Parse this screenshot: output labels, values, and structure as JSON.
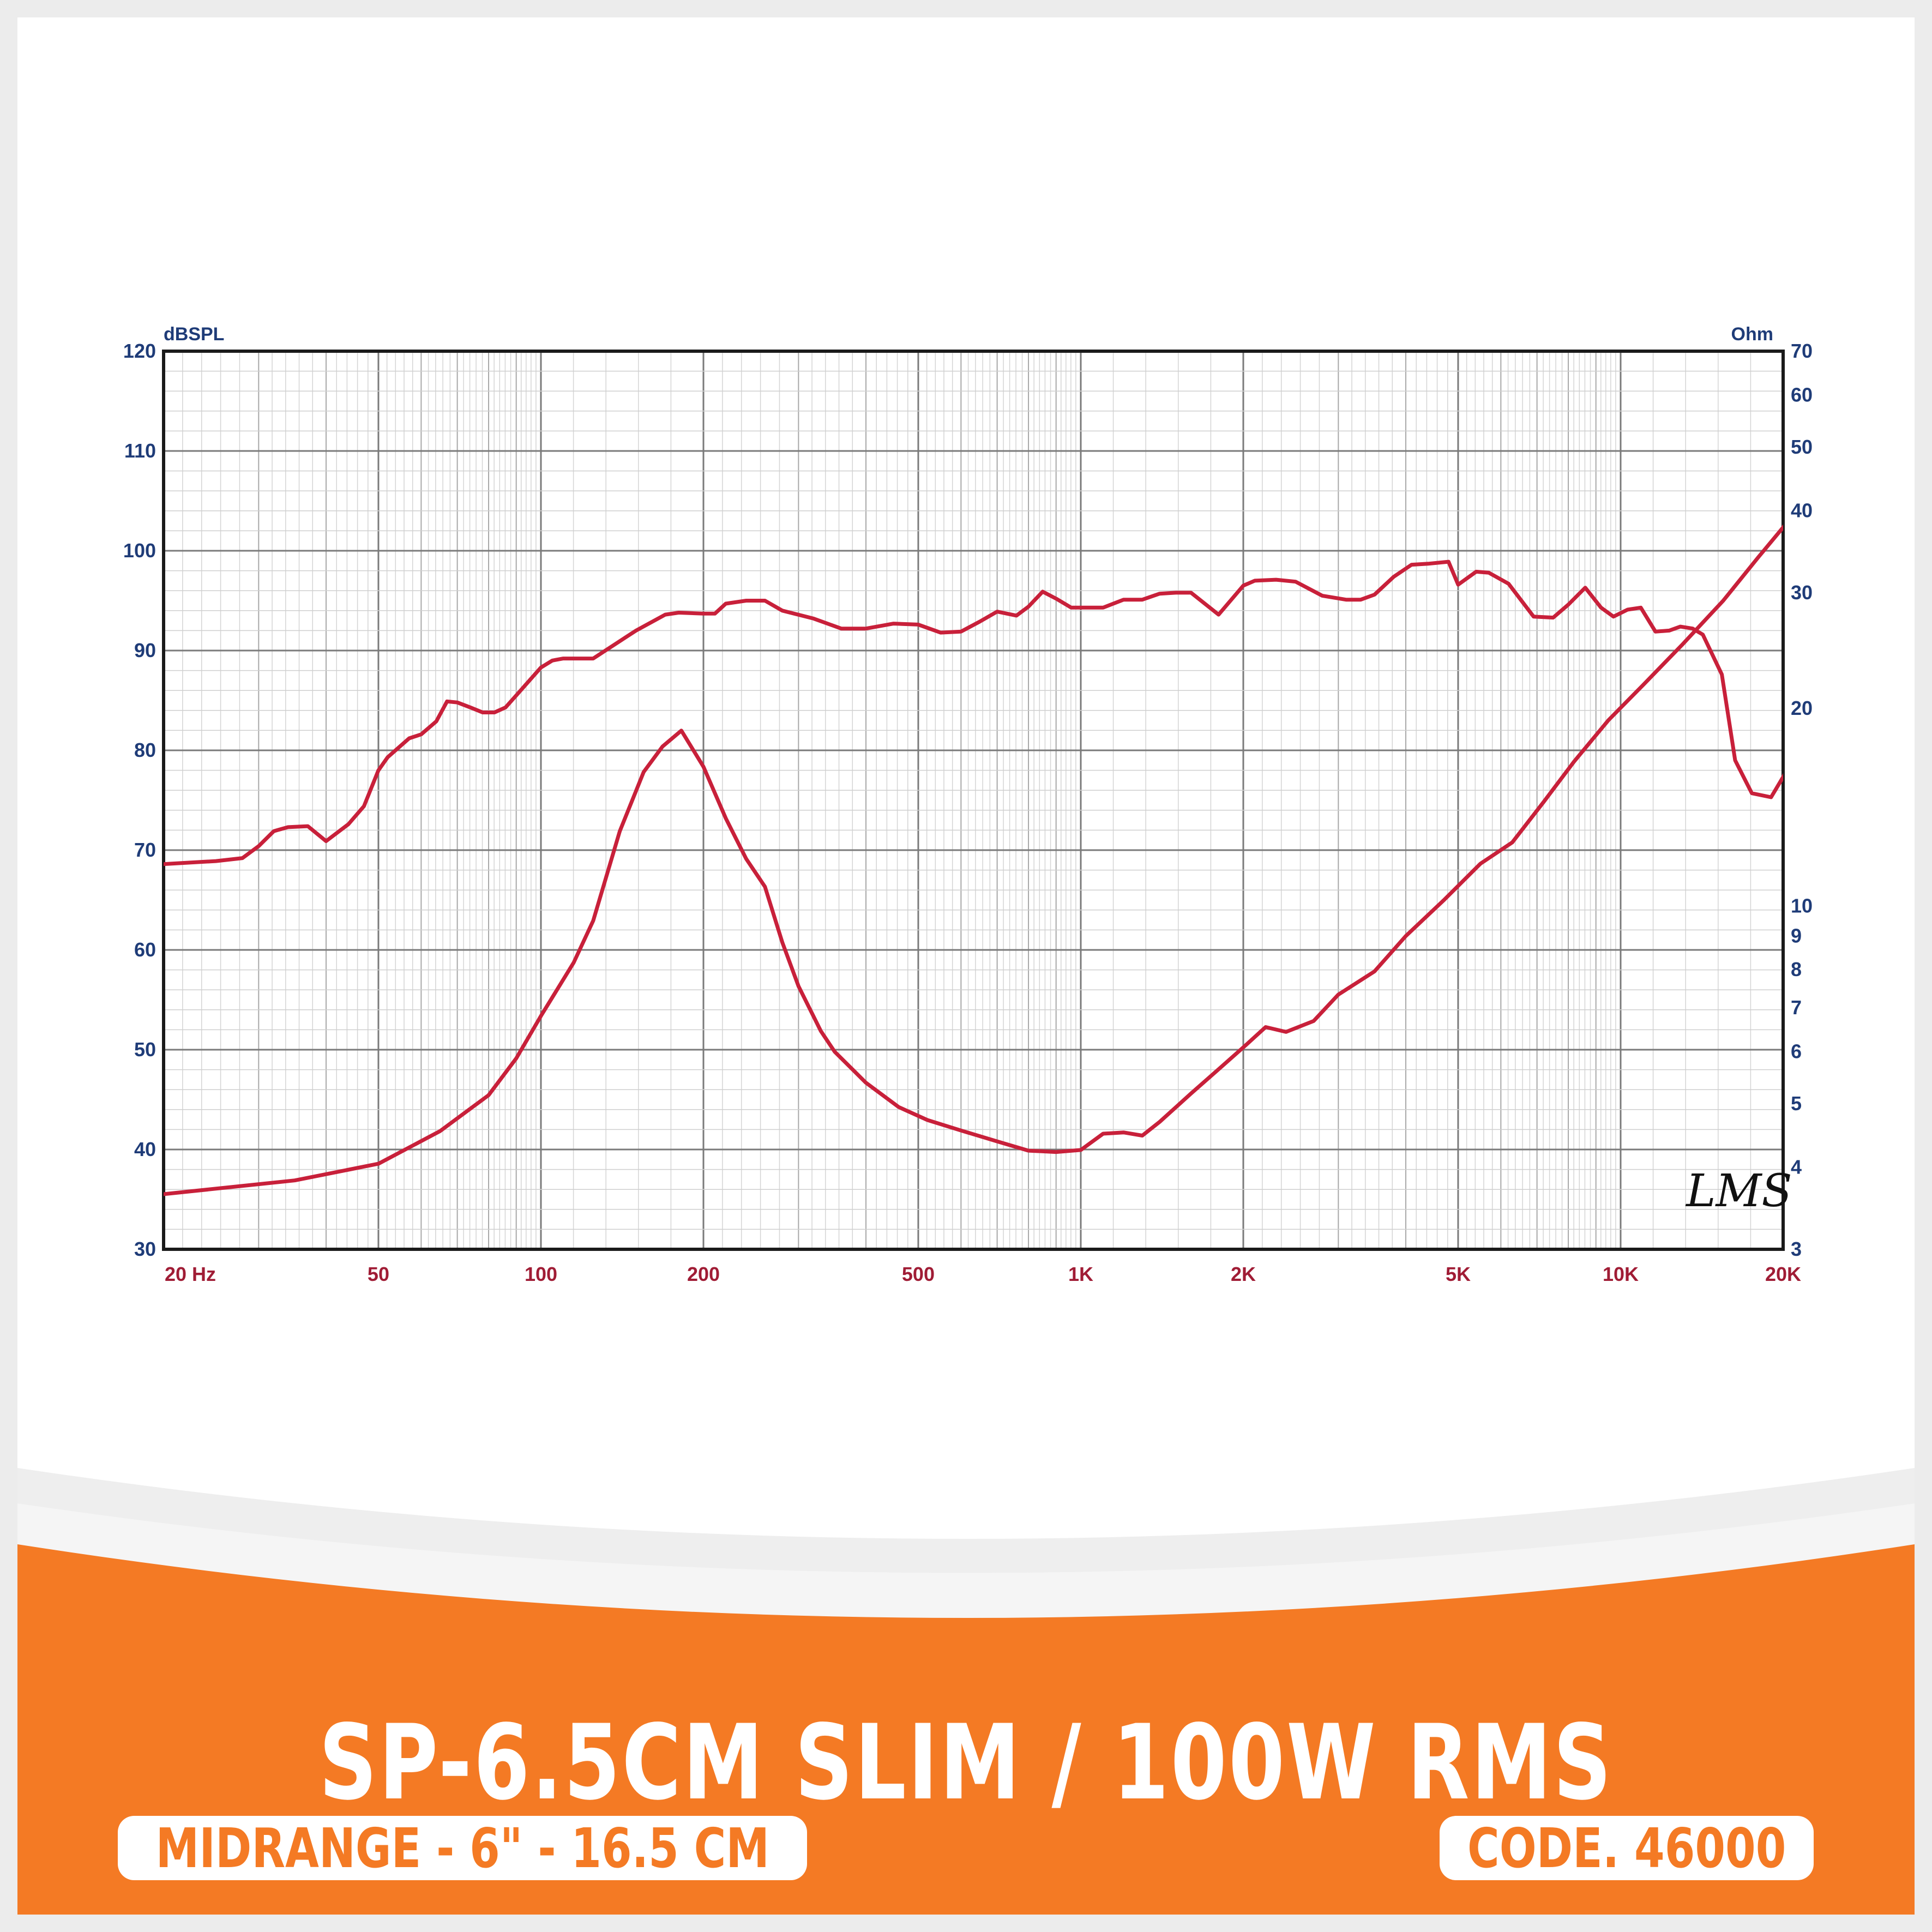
{
  "product": {
    "title": "SP-6.5CM SLIM / 100W RMS",
    "type_label": "MIDRANGE - 6\" - 16.5 CM",
    "code_label": "CODE. 46000"
  },
  "colors": {
    "accent": "#f47a24",
    "curve": "#c8203a",
    "axis_label": "#1f3c78",
    "freq_label": "#a01c35"
  },
  "logo_text": "LMS",
  "chart_data": {
    "type": "line",
    "x_scale": "log",
    "xlim": [
      20,
      20000
    ],
    "x_ticks": [
      {
        "v": 20,
        "label": "20  Hz"
      },
      {
        "v": 50,
        "label": "50"
      },
      {
        "v": 100,
        "label": "100"
      },
      {
        "v": 200,
        "label": "200"
      },
      {
        "v": 500,
        "label": "500"
      },
      {
        "v": 1000,
        "label": "1K"
      },
      {
        "v": 2000,
        "label": "2K"
      },
      {
        "v": 5000,
        "label": "5K"
      },
      {
        "v": 10000,
        "label": "10K"
      },
      {
        "v": 20000,
        "label": "20K"
      }
    ],
    "left_axis": {
      "unit": "dBSPL",
      "ylim": [
        30,
        120
      ],
      "ticks": [
        "30",
        "40",
        "50",
        "60",
        "70",
        "80",
        "90",
        "100",
        "110",
        "120"
      ]
    },
    "right_axis": {
      "unit": "Ohm",
      "scale": "log",
      "ylim": [
        3,
        70
      ],
      "ticks": [
        "3",
        "4",
        "5",
        "6",
        "7",
        "8",
        "9",
        "10",
        "20",
        "30",
        "40",
        "50",
        "60",
        "70"
      ]
    },
    "grid": true,
    "series": [
      {
        "axis": "left",
        "points": [
          [
            20,
            68.6
          ],
          [
            25,
            68.9
          ],
          [
            28,
            69.2
          ],
          [
            30,
            70.4
          ],
          [
            32,
            71.9
          ],
          [
            34,
            72.3
          ],
          [
            37,
            72.4
          ],
          [
            40,
            70.9
          ],
          [
            44,
            72.6
          ],
          [
            47,
            74.4
          ],
          [
            50,
            78.0
          ],
          [
            52,
            79.3
          ],
          [
            57,
            81.2
          ],
          [
            60,
            81.6
          ],
          [
            64,
            82.9
          ],
          [
            67,
            84.9
          ],
          [
            70,
            84.8
          ],
          [
            74,
            84.3
          ],
          [
            78,
            83.8
          ],
          [
            82,
            83.8
          ],
          [
            86,
            84.3
          ],
          [
            90,
            85.5
          ],
          [
            100,
            88.3
          ],
          [
            105,
            89.0
          ],
          [
            110,
            89.2
          ],
          [
            125,
            89.2
          ],
          [
            150,
            92.0
          ],
          [
            170,
            93.6
          ],
          [
            180,
            93.8
          ],
          [
            200,
            93.7
          ],
          [
            210,
            93.7
          ],
          [
            220,
            94.7
          ],
          [
            240,
            95.0
          ],
          [
            260,
            95.0
          ],
          [
            280,
            94.0
          ],
          [
            320,
            93.2
          ],
          [
            360,
            92.2
          ],
          [
            400,
            92.2
          ],
          [
            450,
            92.7
          ],
          [
            500,
            92.6
          ],
          [
            550,
            91.8
          ],
          [
            600,
            91.9
          ],
          [
            650,
            92.9
          ],
          [
            700,
            93.9
          ],
          [
            760,
            93.5
          ],
          [
            800,
            94.4
          ],
          [
            850,
            95.9
          ],
          [
            900,
            95.2
          ],
          [
            960,
            94.3
          ],
          [
            1000,
            94.3
          ],
          [
            1100,
            94.3
          ],
          [
            1200,
            95.1
          ],
          [
            1300,
            95.1
          ],
          [
            1400,
            95.7
          ],
          [
            1500,
            95.8
          ],
          [
            1600,
            95.8
          ],
          [
            1800,
            93.6
          ],
          [
            2000,
            96.5
          ],
          [
            2100,
            97.0
          ],
          [
            2300,
            97.1
          ],
          [
            2500,
            96.9
          ],
          [
            2800,
            95.5
          ],
          [
            3100,
            95.1
          ],
          [
            3300,
            95.1
          ],
          [
            3500,
            95.6
          ],
          [
            3800,
            97.4
          ],
          [
            4100,
            98.6
          ],
          [
            4400,
            98.7
          ],
          [
            4800,
            98.9
          ],
          [
            5000,
            96.6
          ],
          [
            5400,
            97.9
          ],
          [
            5700,
            97.8
          ],
          [
            6200,
            96.7
          ],
          [
            6900,
            93.4
          ],
          [
            7500,
            93.3
          ],
          [
            8000,
            94.6
          ],
          [
            8600,
            96.3
          ],
          [
            9200,
            94.3
          ],
          [
            9700,
            93.4
          ],
          [
            10300,
            94.1
          ],
          [
            10900,
            94.3
          ],
          [
            11600,
            91.9
          ],
          [
            12300,
            92.0
          ],
          [
            12900,
            92.4
          ],
          [
            13600,
            92.2
          ],
          [
            14200,
            91.6
          ],
          [
            15400,
            87.6
          ],
          [
            16300,
            79.0
          ],
          [
            17500,
            75.7
          ],
          [
            19000,
            75.3
          ],
          [
            20500,
            78.3
          ],
          [
            21800,
            77.0
          ],
          [
            23200,
            69.7
          ],
          [
            25000,
            70.4
          ]
        ]
      },
      {
        "axis": "right",
        "points": [
          [
            20,
            3.64
          ],
          [
            35,
            3.82
          ],
          [
            50,
            4.05
          ],
          [
            65,
            4.54
          ],
          [
            80,
            5.15
          ],
          [
            90,
            5.86
          ],
          [
            100,
            6.8
          ],
          [
            115,
            8.2
          ],
          [
            125,
            9.5
          ],
          [
            140,
            13.0
          ],
          [
            155,
            16.0
          ],
          [
            168,
            17.5
          ],
          [
            182,
            18.5
          ],
          [
            200,
            16.3
          ],
          [
            220,
            13.6
          ],
          [
            240,
            11.8
          ],
          [
            260,
            10.7
          ],
          [
            280,
            8.8
          ],
          [
            300,
            7.55
          ],
          [
            330,
            6.45
          ],
          [
            350,
            6.0
          ],
          [
            400,
            5.38
          ],
          [
            460,
            4.94
          ],
          [
            520,
            4.72
          ],
          [
            600,
            4.55
          ],
          [
            700,
            4.38
          ],
          [
            800,
            4.24
          ],
          [
            900,
            4.22
          ],
          [
            1000,
            4.25
          ],
          [
            1100,
            4.5
          ],
          [
            1200,
            4.52
          ],
          [
            1300,
            4.47
          ],
          [
            1400,
            4.69
          ],
          [
            1600,
            5.18
          ],
          [
            1800,
            5.64
          ],
          [
            2000,
            6.09
          ],
          [
            2200,
            6.54
          ],
          [
            2400,
            6.43
          ],
          [
            2700,
            6.68
          ],
          [
            3000,
            7.33
          ],
          [
            3500,
            7.95
          ],
          [
            4000,
            9.0
          ],
          [
            4700,
            10.2
          ],
          [
            5500,
            11.6
          ],
          [
            6300,
            12.5
          ],
          [
            7200,
            14.4
          ],
          [
            8200,
            16.6
          ],
          [
            9500,
            19.2
          ],
          [
            11000,
            21.7
          ],
          [
            13000,
            25.0
          ],
          [
            15500,
            29.2
          ],
          [
            18000,
            34.0
          ],
          [
            21000,
            39.6
          ],
          [
            25000,
            46.7
          ]
        ]
      }
    ]
  }
}
